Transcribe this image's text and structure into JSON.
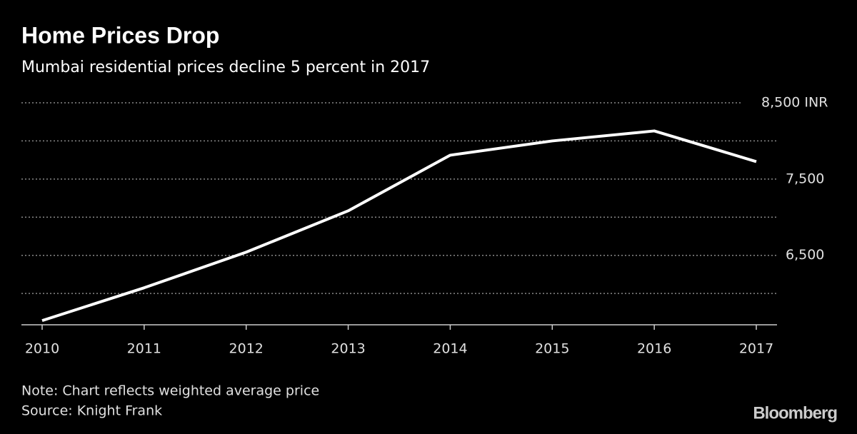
{
  "chart_data": {
    "type": "line",
    "title": "Home Prices Drop",
    "subtitle": "Mumbai residential prices decline 5 percent in 2017",
    "categories": [
      "2010",
      "2011",
      "2012",
      "2013",
      "2014",
      "2015",
      "2016",
      "2017"
    ],
    "values": [
      5645,
      6075,
      6542,
      7084,
      7813,
      8000,
      8131,
      7729
    ],
    "color": "#ffffff",
    "ylim": [
      5590,
      8500
    ],
    "yticks": [
      {
        "value": 8500,
        "label": "8,500 INR"
      },
      {
        "value": 7500,
        "label": "7,500"
      },
      {
        "value": 6500,
        "label": "6,500"
      }
    ],
    "minor_yticks": [
      8000,
      7000,
      6000
    ],
    "grid": true,
    "note": "Note: Chart reflects weighted average price",
    "source": "Source: Knight Frank",
    "brand": "Bloomberg"
  }
}
